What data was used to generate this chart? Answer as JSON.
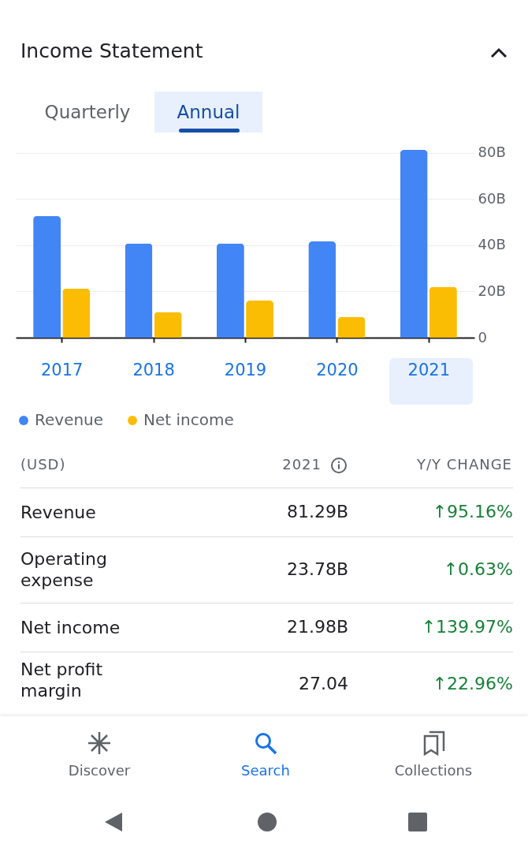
{
  "chart_data": {
    "type": "bar",
    "title": "Income Statement",
    "categories": [
      "2017",
      "2018",
      "2019",
      "2020",
      "2021"
    ],
    "series": [
      {
        "name": "Revenue",
        "color": "#4285f4",
        "values": [
          52.7,
          40.8,
          40.8,
          41.7,
          81.3
        ]
      },
      {
        "name": "Net income",
        "color": "#fbbc04",
        "values": [
          21.3,
          11.1,
          16.1,
          9.0,
          22.0
        ]
      }
    ],
    "ylim": [
      0,
      82
    ],
    "yticks": [
      {
        "value": 0,
        "label": "0"
      },
      {
        "value": 20,
        "label": "20B"
      },
      {
        "value": 40,
        "label": "40B"
      },
      {
        "value": 60,
        "label": "60B"
      },
      {
        "value": 80,
        "label": "80B"
      }
    ],
    "grid": "y",
    "legend": "bottom left",
    "annotations": [
      "Quarterly",
      "Annual",
      "(USD)",
      "2021",
      "Y/Y CHANGE",
      "Revenue",
      "81.29B",
      "↑95.16%",
      "Operating expense",
      "23.78B",
      "↑0.63%",
      "Net income",
      "21.98B",
      "↑139.97%",
      "Net profit margin",
      "27.04",
      "↑22.96%",
      "Discover",
      "Search",
      "Collections"
    ]
  }
}
